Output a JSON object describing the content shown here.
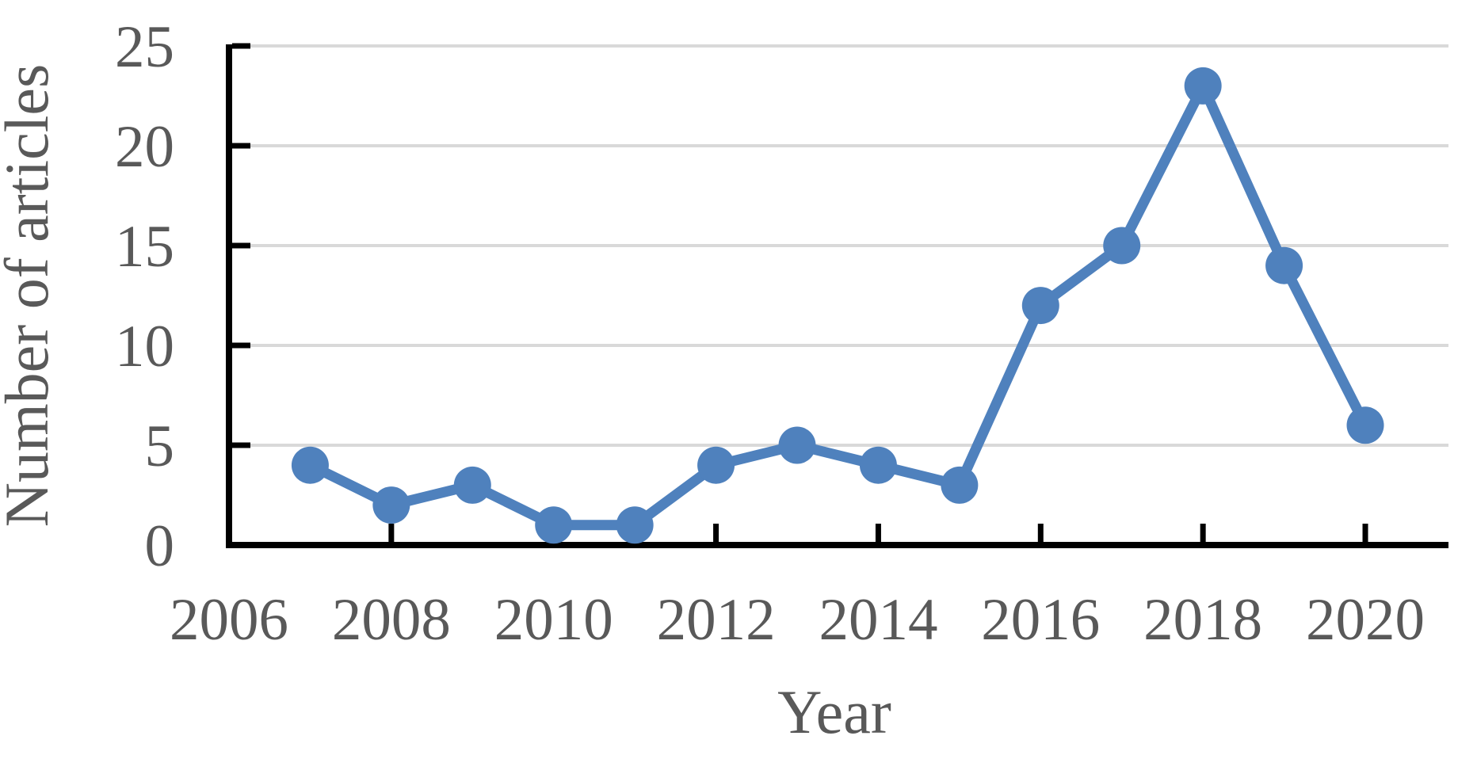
{
  "chart_data": {
    "type": "line",
    "title": "",
    "xlabel": "Year",
    "ylabel": "Number of articles",
    "x": [
      2007,
      2008,
      2009,
      2010,
      2011,
      2012,
      2013,
      2014,
      2015,
      2016,
      2017,
      2018,
      2019,
      2020
    ],
    "values": [
      4,
      2,
      3,
      1,
      1,
      4,
      5,
      4,
      3,
      12,
      15,
      23,
      14,
      6
    ],
    "series_name": "Number of articles",
    "xlim": [
      2006,
      2021.05
    ],
    "ylim": [
      0,
      25
    ],
    "xticks": [
      2006,
      2008,
      2010,
      2012,
      2014,
      2016,
      2018,
      2020
    ],
    "yticks": [
      0,
      5,
      10,
      15,
      20,
      25
    ],
    "grid": "horizontal-only",
    "legend": "none",
    "marker": "circle",
    "colors": {
      "line": "#4F81BD",
      "marker": "#4F81BD",
      "gridline": "#D9D9D9",
      "axis": "#000000",
      "tick_label": "#595959",
      "axis_title": "#595959",
      "background": "#FFFFFF"
    }
  }
}
